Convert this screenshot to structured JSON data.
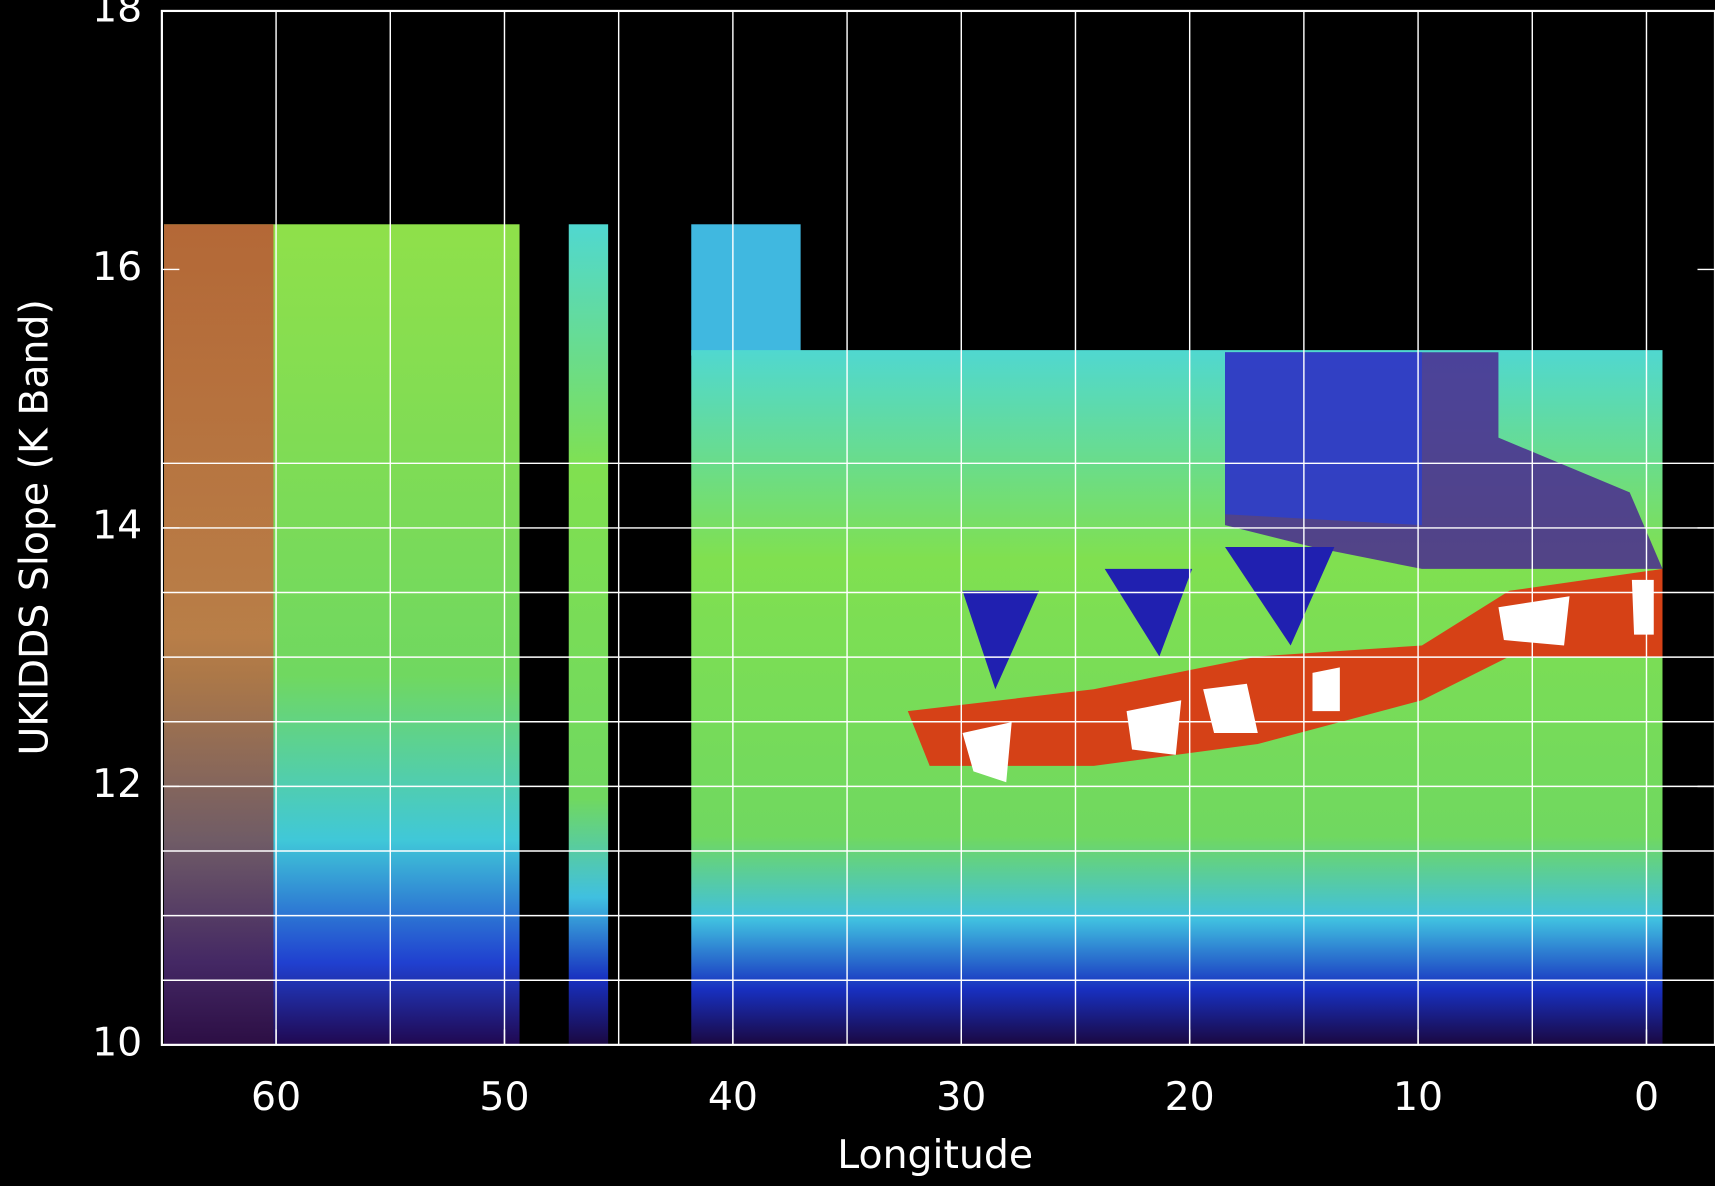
{
  "chart_data": {
    "type": "heatmap",
    "x_label": "Longitude",
    "y_label": "UKIDDS Slope (K Band)",
    "xlim": [
      65,
      -3
    ],
    "xticks": [
      60,
      50,
      40,
      30,
      20,
      10,
      0
    ],
    "xgrid": [
      60,
      55,
      50,
      45,
      40,
      35,
      30,
      25,
      20,
      15,
      10,
      5,
      0
    ],
    "ylim": [
      10,
      18
    ],
    "yticks": [
      10,
      12,
      14,
      16,
      18
    ],
    "ygrid": [
      10.5,
      11,
      11.5,
      12,
      12.5,
      13,
      13.5,
      14,
      14.5
    ],
    "grid": true
  }
}
